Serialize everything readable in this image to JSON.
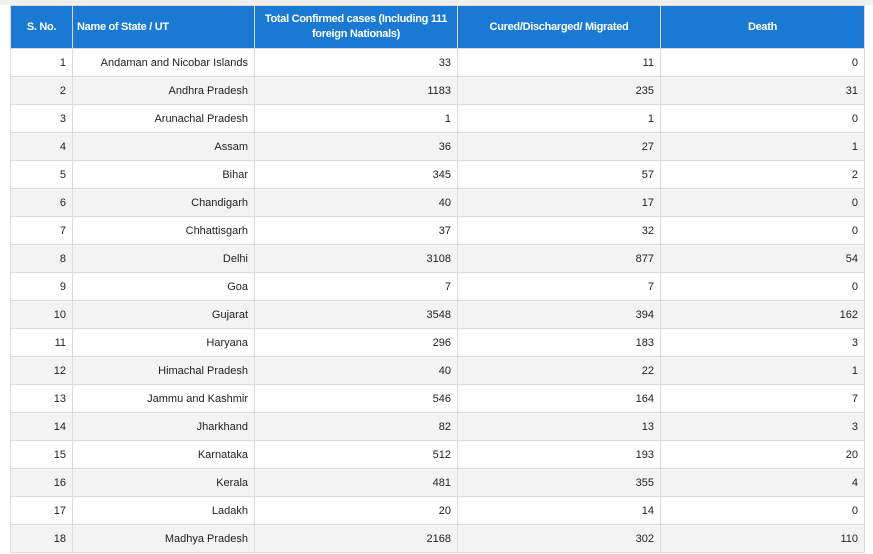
{
  "headers": [
    "S. No.",
    "Name of State / UT",
    "Total Confirmed cases (Including 111 foreign Nationals)",
    "Cured/Discharged/ Migrated",
    "Death"
  ],
  "rows": [
    [
      "1",
      "Andaman and Nicobar Islands",
      "33",
      "11",
      "0"
    ],
    [
      "2",
      "Andhra Pradesh",
      "1183",
      "235",
      "31"
    ],
    [
      "3",
      "Arunachal Pradesh",
      "1",
      "1",
      "0"
    ],
    [
      "4",
      "Assam",
      "36",
      "27",
      "1"
    ],
    [
      "5",
      "Bihar",
      "345",
      "57",
      "2"
    ],
    [
      "6",
      "Chandigarh",
      "40",
      "17",
      "0"
    ],
    [
      "7",
      "Chhattisgarh",
      "37",
      "32",
      "0"
    ],
    [
      "8",
      "Delhi",
      "3108",
      "877",
      "54"
    ],
    [
      "9",
      "Goa",
      "7",
      "7",
      "0"
    ],
    [
      "10",
      "Gujarat",
      "3548",
      "394",
      "162"
    ],
    [
      "11",
      "Haryana",
      "296",
      "183",
      "3"
    ],
    [
      "12",
      "Himachal Pradesh",
      "40",
      "22",
      "1"
    ],
    [
      "13",
      "Jammu and Kashmir",
      "546",
      "164",
      "7"
    ],
    [
      "14",
      "Jharkhand",
      "82",
      "13",
      "3"
    ],
    [
      "15",
      "Karnataka",
      "512",
      "193",
      "20"
    ],
    [
      "16",
      "Kerala",
      "481",
      "355",
      "4"
    ],
    [
      "17",
      "Ladakh",
      "20",
      "14",
      "0"
    ],
    [
      "18",
      "Madhya Pradesh",
      "2168",
      "302",
      "110"
    ]
  ],
  "colors": {
    "header": "#1a7ad3",
    "stripe": "#f3f3f3"
  }
}
